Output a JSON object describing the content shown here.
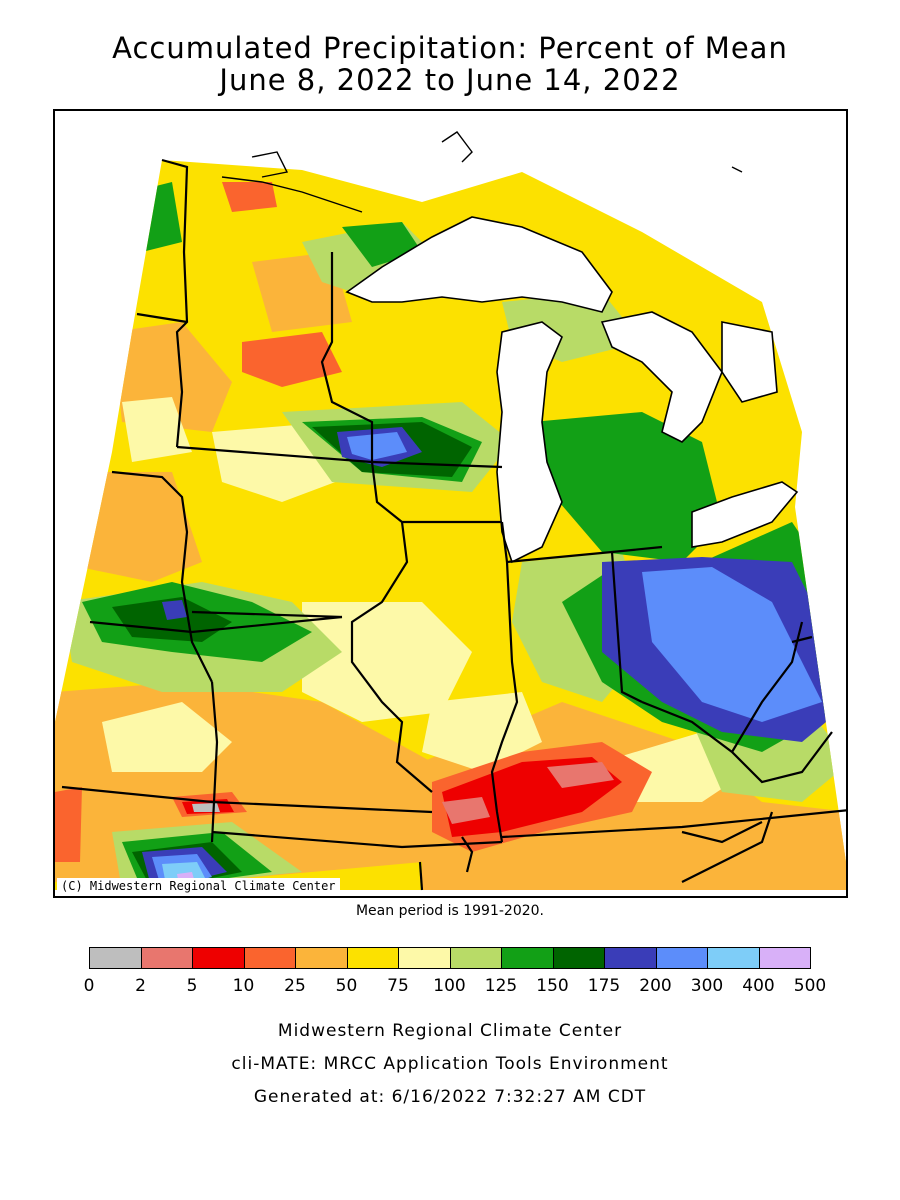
{
  "header": {
    "title_line1": "Accumulated Precipitation: Percent of Mean",
    "title_line2": "June 8, 2022 to June 14, 2022"
  },
  "map": {
    "copyright": "(C) Midwestern Regional Climate Center",
    "mean_period": "Mean period is 1991-2020."
  },
  "legend": {
    "bins": [
      {
        "from": "0",
        "to": "2",
        "color": "#BEBEBE"
      },
      {
        "from": "2",
        "to": "5",
        "color": "#E8766E"
      },
      {
        "from": "5",
        "to": "10",
        "color": "#EE0000"
      },
      {
        "from": "10",
        "to": "25",
        "color": "#FA642E"
      },
      {
        "from": "25",
        "to": "50",
        "color": "#FBB43A"
      },
      {
        "from": "50",
        "to": "75",
        "color": "#FCE100"
      },
      {
        "from": "75",
        "to": "100",
        "color": "#FDF9A8"
      },
      {
        "from": "100",
        "to": "125",
        "color": "#B8DB67"
      },
      {
        "from": "125",
        "to": "150",
        "color": "#12A016"
      },
      {
        "from": "150",
        "to": "175",
        "color": "#006400"
      },
      {
        "from": "175",
        "to": "200",
        "color": "#3A3DB8"
      },
      {
        "from": "200",
        "to": "300",
        "color": "#5C8DFA"
      },
      {
        "from": "300",
        "to": "400",
        "color": "#7ECDF8"
      },
      {
        "from": "400",
        "to": "500",
        "color": "#D8B0F8"
      }
    ],
    "tick_labels": [
      "0",
      "2",
      "5",
      "10",
      "25",
      "50",
      "75",
      "100",
      "125",
      "150",
      "175",
      "200",
      "300",
      "400",
      "500"
    ]
  },
  "footer": {
    "line1": "Midwestern Regional Climate Center",
    "line2": "cli-MATE: MRCC Application Tools Environment",
    "line3": "Generated at: 6/16/2022 7:32:27 AM CDT"
  }
}
